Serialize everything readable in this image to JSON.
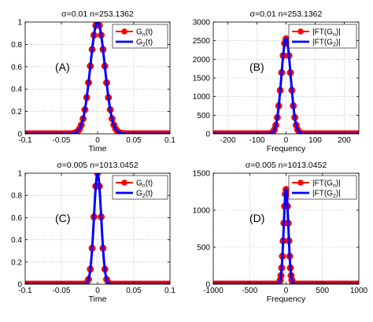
{
  "chart_data": [
    {
      "type": "line",
      "title": "σ=0.01 n=253.1362",
      "xlabel": "Time",
      "ylabel": "",
      "panel_label": "(A)",
      "xlim": [
        -0.1,
        0.1
      ],
      "ylim": [
        0,
        1
      ],
      "xticks": [
        -0.1,
        -0.05,
        0,
        0.05,
        0.1
      ],
      "xtick_labels": [
        "-0.1",
        "-0.05",
        "0",
        "0.05",
        "0.1"
      ],
      "yticks": [
        0,
        0.2,
        0.4,
        0.6,
        0.8,
        1
      ],
      "ytick_labels": [
        "0",
        "0.2",
        "0.4",
        "0.6",
        "0.8",
        "1"
      ],
      "grid": true,
      "legend_position": "top-right",
      "series": [
        {
          "name_main": "G",
          "name_sub": "n",
          "name_suffix": "(t)",
          "color": "#ff0000",
          "style": "line-markers",
          "shape": "gaussian",
          "center": 0,
          "peak": 1,
          "sigma": 0.01,
          "x_range": [
            -0.1,
            0.1
          ],
          "step": 0.0025
        },
        {
          "name_main": "G",
          "name_sub": "2",
          "name_suffix": "(t)",
          "color": "#0000ff",
          "style": "line",
          "shape": "gaussian",
          "center": 0,
          "peak": 1,
          "sigma": 0.01,
          "x_range": [
            -0.1,
            0.1
          ],
          "step": 0.0005
        }
      ]
    },
    {
      "type": "line",
      "title": "σ=0.01 n=253.1362",
      "xlabel": "Frequency",
      "ylabel": "",
      "panel_label": "(B)",
      "xlim": [
        -250,
        250
      ],
      "ylim": [
        0,
        3000
      ],
      "xticks": [
        -200,
        -100,
        0,
        100,
        200
      ],
      "xtick_labels": [
        "-200",
        "-100",
        "0",
        "100",
        "200"
      ],
      "yticks": [
        0,
        500,
        1000,
        1500,
        2000,
        2500,
        3000
      ],
      "ytick_labels": [
        "0",
        "500",
        "1000",
        "1500",
        "2000",
        "2500",
        "3000"
      ],
      "grid": true,
      "legend_position": "top-right",
      "series": [
        {
          "name_main": "|FT(G",
          "name_sub": "n",
          "name_suffix": ")|",
          "color": "#ff0000",
          "style": "line-markers",
          "shape": "gaussian",
          "center": 0,
          "peak": 2550,
          "sigma": 16,
          "x_range": [
            -250,
            250
          ],
          "step": 5
        },
        {
          "name_main": "|FT(G",
          "name_sub": "2",
          "name_suffix": ")|",
          "color": "#0000ff",
          "style": "line",
          "shape": "gaussian",
          "center": 0,
          "peak": 2550,
          "sigma": 16,
          "x_range": [
            -250,
            250
          ],
          "step": 1
        }
      ]
    },
    {
      "type": "line",
      "title": "σ=0.005 n=1013.0452",
      "xlabel": "Time",
      "ylabel": "",
      "panel_label": "(C)",
      "xlim": [
        -0.1,
        0.1
      ],
      "ylim": [
        0,
        1
      ],
      "xticks": [
        -0.1,
        -0.05,
        0,
        0.05,
        0.1
      ],
      "xtick_labels": [
        "-0.1",
        "-0.05",
        "0",
        "0.05",
        "0.1"
      ],
      "yticks": [
        0,
        0.2,
        0.4,
        0.6,
        0.8,
        1
      ],
      "ytick_labels": [
        "0",
        "0.2",
        "0.4",
        "0.6",
        "0.8",
        "1"
      ],
      "grid": true,
      "legend_position": "top-right",
      "series": [
        {
          "name_main": "G",
          "name_sub": "n",
          "name_suffix": "(t)",
          "color": "#ff0000",
          "style": "line-markers",
          "shape": "gaussian",
          "center": 0,
          "peak": 1,
          "sigma": 0.005,
          "x_range": [
            -0.1,
            0.1
          ],
          "step": 0.0025
        },
        {
          "name_main": "G",
          "name_sub": "2",
          "name_suffix": "(t)",
          "color": "#0000ff",
          "style": "line",
          "shape": "gaussian",
          "center": 0,
          "peak": 1,
          "sigma": 0.005,
          "x_range": [
            -0.1,
            0.1
          ],
          "step": 0.0005
        }
      ]
    },
    {
      "type": "line",
      "title": "σ=0.005 n=1013.0452",
      "xlabel": "Frequency",
      "ylabel": "",
      "panel_label": "(D)",
      "xlim": [
        -1000,
        1000
      ],
      "ylim": [
        0,
        1500
      ],
      "xticks": [
        -1000,
        -500,
        0,
        500,
        1000
      ],
      "xtick_labels": [
        "-1000",
        "-500",
        "0",
        "500",
        "1000"
      ],
      "yticks": [
        0,
        500,
        1000,
        1500
      ],
      "ytick_labels": [
        "0",
        "500",
        "1000",
        "1500"
      ],
      "grid": true,
      "legend_position": "top-right",
      "series": [
        {
          "name_main": "|FT(G",
          "name_sub": "n",
          "name_suffix": ")|",
          "color": "#ff0000",
          "style": "line-markers",
          "shape": "gaussian",
          "center": 0,
          "peak": 1280,
          "sigma": 32,
          "x_range": [
            -1000,
            1000
          ],
          "step": 10
        },
        {
          "name_main": "|FT(G",
          "name_sub": "2",
          "name_suffix": ")|",
          "color": "#0000ff",
          "style": "line",
          "shape": "gaussian",
          "center": 0,
          "peak": 1280,
          "sigma": 32,
          "x_range": [
            -1000,
            1000
          ],
          "step": 2
        }
      ]
    }
  ]
}
